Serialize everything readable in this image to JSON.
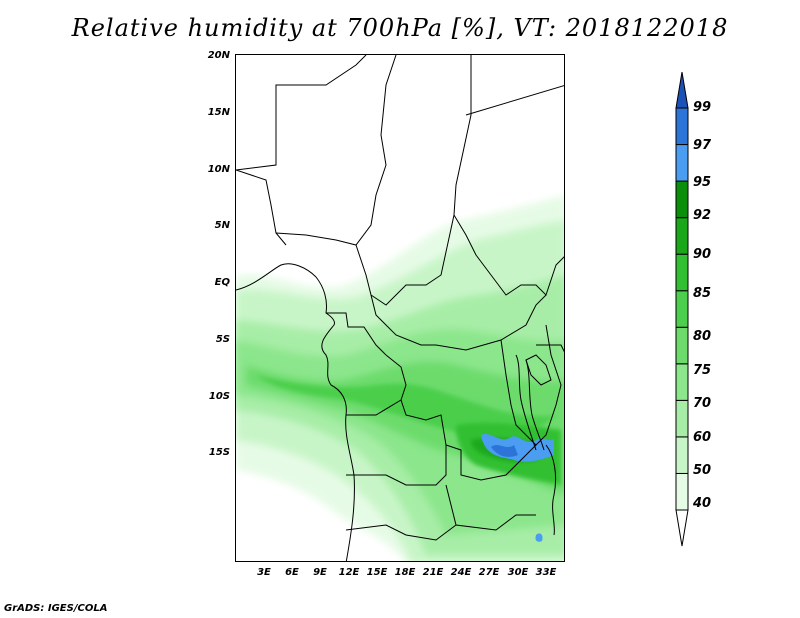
{
  "title": "Relative humidity at 700hPa [%], VT: 2018122018",
  "credit": "GrADS: IGES/COLA",
  "lat_labels": [
    "20N",
    "15N",
    "10N",
    "5N",
    "EQ",
    "5S",
    "10S",
    "15S"
  ],
  "lon_labels": [
    "3E",
    "6E",
    "9E",
    "12E",
    "15E",
    "18E",
    "21E",
    "24E",
    "27E",
    "30E",
    "33E"
  ],
  "colorbar": {
    "levels": [
      "40",
      "50",
      "60",
      "70",
      "75",
      "80",
      "85",
      "90",
      "92",
      "95",
      "97",
      "99"
    ],
    "colors": [
      "#ffffff",
      "#e6fbe6",
      "#c8f5c8",
      "#a7eda7",
      "#8ce68c",
      "#6cdb6c",
      "#4ccf4c",
      "#32c032",
      "#1aa81a",
      "#0a8f0a",
      "#4a9df0",
      "#2c74d8",
      "#1c52b8"
    ]
  }
}
